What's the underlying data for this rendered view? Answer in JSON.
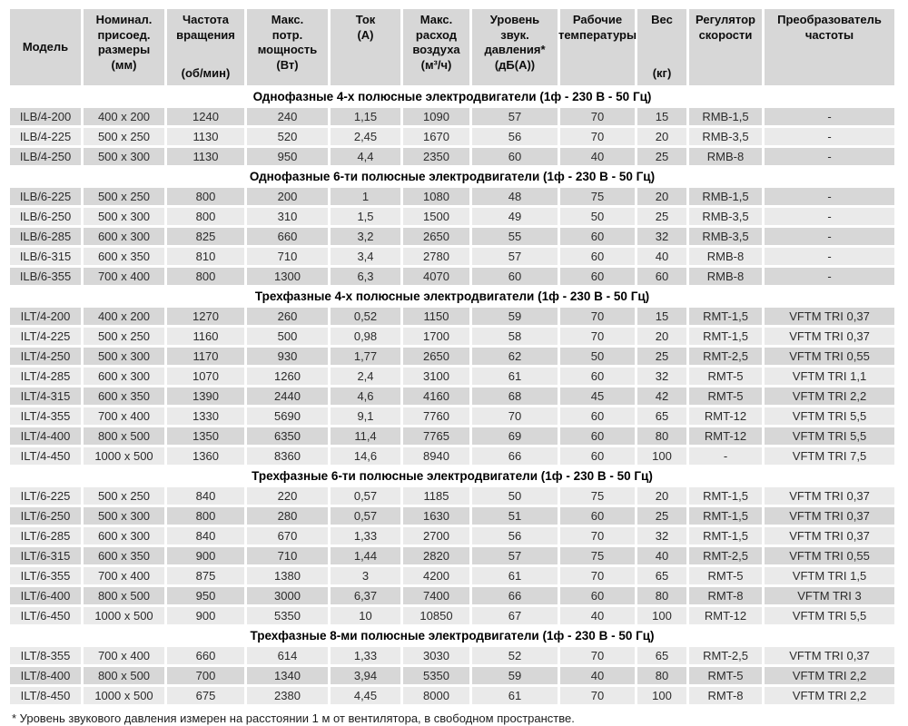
{
  "colors": {
    "cell_dark": "#d7d7d7",
    "cell_light": "#eaeaea",
    "background": "#ffffff"
  },
  "header": {
    "columns": [
      {
        "key": "model",
        "main": "Модель",
        "unit": "",
        "center": true
      },
      {
        "key": "dimensions",
        "main": "Номинал.\nприсоед.\nразмеры\n(мм)",
        "unit": ""
      },
      {
        "key": "rpm",
        "main": "Частота\nвращения",
        "unit": "(об/мин)"
      },
      {
        "key": "power",
        "main": "Макс.\nпотр.\nмощность\n(Вт)",
        "unit": ""
      },
      {
        "key": "current",
        "main": "Ток\n(А)",
        "unit": ""
      },
      {
        "key": "airflow",
        "main": "Макс.\nрасход\nвоздуха\n(м³/ч)",
        "unit": ""
      },
      {
        "key": "noise",
        "main": "Уровень\nзвук.\nдавления*\n(дБ(А))",
        "unit": ""
      },
      {
        "key": "temperature",
        "main": "Рабочие\nтемпературы",
        "unit": ""
      },
      {
        "key": "weight",
        "main": "Вес",
        "unit": "(кг)"
      },
      {
        "key": "regulator",
        "main": "Регулятор\nскорости",
        "unit": ""
      },
      {
        "key": "converter",
        "main": "Преобразователь\nчастоты",
        "unit": ""
      }
    ]
  },
  "sections": [
    {
      "title": "Однофазные 4-х полюсные электродвигатели (1ф - 230 В - 50 Гц)",
      "alt_start": "dark",
      "rows": [
        [
          "ILB/4-200",
          "400 x 200",
          "1240",
          "240",
          "1,15",
          "1090",
          "57",
          "70",
          "15",
          "RMB-1,5",
          "-"
        ],
        [
          "ILB/4-225",
          "500 x 250",
          "1130",
          "520",
          "2,45",
          "1670",
          "56",
          "70",
          "20",
          "RMB-3,5",
          "-"
        ],
        [
          "ILB/4-250",
          "500 x 300",
          "1130",
          "950",
          "4,4",
          "2350",
          "60",
          "40",
          "25",
          "RMB-8",
          "-"
        ]
      ]
    },
    {
      "title": "Однофазные 6-ти полюсные электродвигатели (1ф - 230 В - 50 Гц)",
      "alt_start": "dark",
      "rows": [
        [
          "ILB/6-225",
          "500 x 250",
          "800",
          "200",
          "1",
          "1080",
          "48",
          "75",
          "20",
          "RMB-1,5",
          "-"
        ],
        [
          "ILB/6-250",
          "500 x 300",
          "800",
          "310",
          "1,5",
          "1500",
          "49",
          "50",
          "25",
          "RMB-3,5",
          "-"
        ],
        [
          "ILB/6-285",
          "600 x 300",
          "825",
          "660",
          "3,2",
          "2650",
          "55",
          "60",
          "32",
          "RMB-3,5",
          "-"
        ],
        [
          "ILB/6-315",
          "600 x 350",
          "810",
          "710",
          "3,4",
          "2780",
          "57",
          "60",
          "40",
          "RMB-8",
          "-"
        ],
        [
          "ILB/6-355",
          "700 x 400",
          "800",
          "1300",
          "6,3",
          "4070",
          "60",
          "60",
          "60",
          "RMB-8",
          "-"
        ]
      ]
    },
    {
      "title": "Трехфазные 4-х полюсные электродвигатели (1ф - 230 В - 50 Гц)",
      "alt_start": "dark",
      "rows": [
        [
          "ILT/4-200",
          "400 x 200",
          "1270",
          "260",
          "0,52",
          "1150",
          "59",
          "70",
          "15",
          "RMT-1,5",
          "VFTM TRI 0,37"
        ],
        [
          "ILT/4-225",
          "500 x 250",
          "1160",
          "500",
          "0,98",
          "1700",
          "58",
          "70",
          "20",
          "RMT-1,5",
          "VFTM TRI 0,37"
        ],
        [
          "ILT/4-250",
          "500 x 300",
          "1170",
          "930",
          "1,77",
          "2650",
          "62",
          "50",
          "25",
          "RMT-2,5",
          "VFTM TRI 0,55"
        ],
        [
          "ILT/4-285",
          "600 x 300",
          "1070",
          "1260",
          "2,4",
          "3100",
          "61",
          "60",
          "32",
          "RMT-5",
          "VFTM TRI 1,1"
        ],
        [
          "ILT/4-315",
          "600 x 350",
          "1390",
          "2440",
          "4,6",
          "4160",
          "68",
          "45",
          "42",
          "RMT-5",
          "VFTM TRI 2,2"
        ],
        [
          "ILT/4-355",
          "700 x 400",
          "1330",
          "5690",
          "9,1",
          "7760",
          "70",
          "60",
          "65",
          "RMT-12",
          "VFTM TRI 5,5"
        ],
        [
          "ILT/4-400",
          "800 x 500",
          "1350",
          "6350",
          "11,4",
          "7765",
          "69",
          "60",
          "80",
          "RMT-12",
          "VFTM TRI 5,5"
        ],
        [
          "ILT/4-450",
          "1000 x 500",
          "1360",
          "8360",
          "14,6",
          "8940",
          "66",
          "60",
          "100",
          "-",
          "VFTM TRI 7,5"
        ]
      ]
    },
    {
      "title": "Трехфазные 6-ти полюсные электродвигатели (1ф - 230 В - 50 Гц)",
      "alt_start": "light",
      "rows": [
        [
          "ILT/6-225",
          "500 x 250",
          "840",
          "220",
          "0,57",
          "1185",
          "50",
          "75",
          "20",
          "RMT-1,5",
          "VFTM TRI 0,37"
        ],
        [
          "ILT/6-250",
          "500 x 300",
          "800",
          "280",
          "0,57",
          "1630",
          "51",
          "60",
          "25",
          "RMT-1,5",
          "VFTM TRI 0,37"
        ],
        [
          "ILT/6-285",
          "600 x 300",
          "840",
          "670",
          "1,33",
          "2700",
          "56",
          "70",
          "32",
          "RMT-1,5",
          "VFTM TRI 0,37"
        ],
        [
          "ILT/6-315",
          "600 x 350",
          "900",
          "710",
          "1,44",
          "2820",
          "57",
          "75",
          "40",
          "RMT-2,5",
          "VFTM TRI 0,55"
        ],
        [
          "ILT/6-355",
          "700 x 400",
          "875",
          "1380",
          "3",
          "4200",
          "61",
          "70",
          "65",
          "RMT-5",
          "VFTM TRI 1,5"
        ],
        [
          "ILT/6-400",
          "800 x 500",
          "950",
          "3000",
          "6,37",
          "7400",
          "66",
          "60",
          "80",
          "RMT-8",
          "VFTM TRI 3"
        ],
        [
          "ILT/6-450",
          "1000 x 500",
          "900",
          "5350",
          "10",
          "10850",
          "67",
          "40",
          "100",
          "RMT-12",
          "VFTM TRI 5,5"
        ]
      ]
    },
    {
      "title": "Трехфазные 8-ми полюсные электродвигатели (1ф - 230 В - 50 Гц)",
      "alt_start": "light",
      "rows": [
        [
          "ILT/8-355",
          "700 x 400",
          "660",
          "614",
          "1,33",
          "3030",
          "52",
          "70",
          "65",
          "RMT-2,5",
          "VFTM TRI 0,37"
        ],
        [
          "ILT/8-400",
          "800 x 500",
          "700",
          "1340",
          "3,94",
          "5350",
          "59",
          "40",
          "80",
          "RMT-5",
          "VFTM TRI 2,2"
        ],
        [
          "ILT/8-450",
          "1000 x 500",
          "675",
          "2380",
          "4,45",
          "8000",
          "61",
          "70",
          "100",
          "RMT-8",
          "VFTM TRI 2,2"
        ]
      ]
    }
  ],
  "footnote": "* Уровень звукового давления измерен на расстоянии 1 м от вентилятора, в свободном пространстве."
}
